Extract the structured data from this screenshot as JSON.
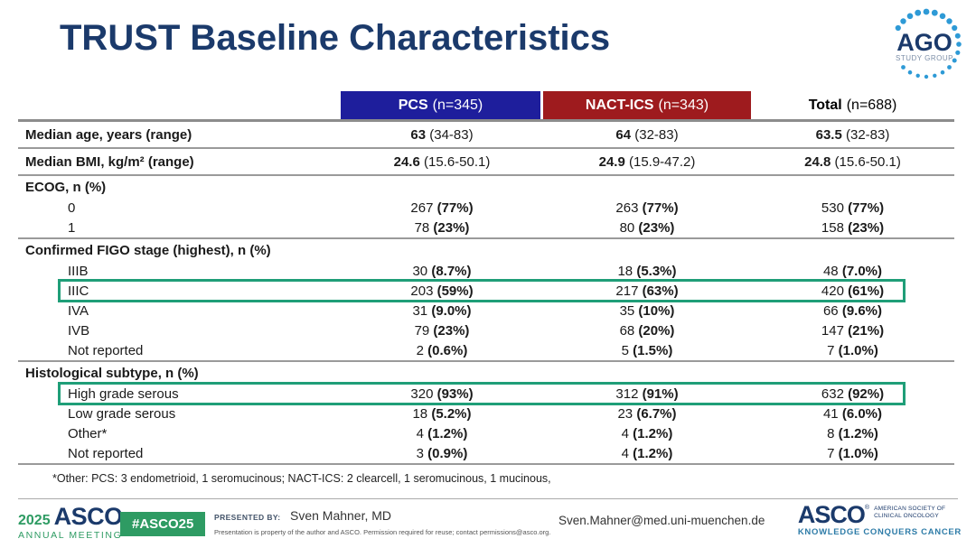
{
  "title": "TRUST Baseline Characteristics",
  "ago_logo": {
    "text": "AGO",
    "subtext": "STUDY GROUP"
  },
  "colors": {
    "title_navy": "#1B3A6B",
    "pcs_blue": "#1E1E9C",
    "nact_red": "#9E1B1E",
    "highlight_teal": "#1F9E78",
    "rule_gray": "#9A9A9A",
    "asco_green": "#2E9B63",
    "tagline_blue": "#2E7CA8",
    "dot_blue": "#2E9AD6",
    "text_dark": "#1A1A1A"
  },
  "table": {
    "header": {
      "columns": [
        {
          "name": "PCS",
          "n": "(n=345)"
        },
        {
          "name": "NACT-ICS",
          "n": "(n=343)"
        },
        {
          "name": "Total",
          "n": "(n=688)"
        }
      ]
    },
    "rows": [
      {
        "type": "data",
        "label": "Median age, years (range)",
        "bold_label": true,
        "tall": true,
        "bold_part": "main",
        "rule_below": true,
        "cells": [
          [
            "63",
            "(34-83)"
          ],
          [
            "64",
            "(32-83)"
          ],
          [
            "63.5",
            "(32-83)"
          ]
        ]
      },
      {
        "type": "data",
        "label": "Median BMI, kg/m² (range)",
        "bold_label": true,
        "tall": true,
        "bold_part": "main",
        "rule_below": true,
        "cells": [
          [
            "24.6",
            "(15.6-50.1)"
          ],
          [
            "24.9",
            "(15.9-47.2)"
          ],
          [
            "24.8",
            "(15.6-50.1)"
          ]
        ]
      },
      {
        "type": "section",
        "label": "ECOG, n (%)"
      },
      {
        "type": "data",
        "label": "0",
        "indent": true,
        "bold_part": "paren",
        "cells": [
          [
            "267",
            "(77%)"
          ],
          [
            "263",
            "(77%)"
          ],
          [
            "530",
            "(77%)"
          ]
        ]
      },
      {
        "type": "data",
        "label": "1",
        "indent": true,
        "bold_part": "paren",
        "rule_below": true,
        "cells": [
          [
            "78",
            "(23%)"
          ],
          [
            "80",
            "(23%)"
          ],
          [
            "158",
            "(23%)"
          ]
        ]
      },
      {
        "type": "section",
        "label": "Confirmed FIGO stage (highest), n (%)"
      },
      {
        "type": "data",
        "label": "IIIB",
        "indent": true,
        "bold_part": "paren",
        "cells": [
          [
            "30",
            "(8.7%)"
          ],
          [
            "18",
            "(5.3%)"
          ],
          [
            "48",
            "(7.0%)"
          ]
        ]
      },
      {
        "type": "data",
        "label": "IIIC",
        "indent": true,
        "highlight": true,
        "bold_part": "paren",
        "cells": [
          [
            "203",
            "(59%)"
          ],
          [
            "217",
            "(63%)"
          ],
          [
            "420",
            "(61%)"
          ]
        ]
      },
      {
        "type": "data",
        "label": "IVA",
        "indent": true,
        "bold_part": "paren",
        "cells": [
          [
            "31",
            "(9.0%)"
          ],
          [
            "35",
            "(10%)"
          ],
          [
            "66",
            "(9.6%)"
          ]
        ]
      },
      {
        "type": "data",
        "label": "IVB",
        "indent": true,
        "bold_part": "paren",
        "cells": [
          [
            "79",
            "(23%)"
          ],
          [
            "68",
            "(20%)"
          ],
          [
            "147",
            "(21%)"
          ]
        ]
      },
      {
        "type": "data",
        "label": "Not reported",
        "indent": true,
        "bold_part": "paren",
        "rule_below": true,
        "cells": [
          [
            "2",
            "(0.6%)"
          ],
          [
            "5",
            "(1.5%)"
          ],
          [
            "7",
            "(1.0%)"
          ]
        ]
      },
      {
        "type": "section",
        "label": "Histological subtype, n (%)"
      },
      {
        "type": "data",
        "label": "High grade serous",
        "indent": true,
        "highlight": true,
        "bold_part": "paren",
        "cells": [
          [
            "320",
            "(93%)"
          ],
          [
            "312",
            "(91%)"
          ],
          [
            "632",
            "(92%)"
          ]
        ]
      },
      {
        "type": "data",
        "label": "Low grade serous",
        "indent": true,
        "bold_part": "paren",
        "cells": [
          [
            "18",
            "(5.2%)"
          ],
          [
            "23",
            "(6.7%)"
          ],
          [
            "41",
            "(6.0%)"
          ]
        ]
      },
      {
        "type": "data",
        "label": "Other*",
        "indent": true,
        "bold_part": "paren",
        "cells": [
          [
            "4",
            "(1.2%)"
          ],
          [
            "4",
            "(1.2%)"
          ],
          [
            "8",
            "(1.2%)"
          ]
        ]
      },
      {
        "type": "data",
        "label": "Not reported",
        "indent": true,
        "bold_part": "paren",
        "rule_below": true,
        "cells": [
          [
            "3",
            "(0.9%)"
          ],
          [
            "4",
            "(1.2%)"
          ],
          [
            "7",
            "(1.0%)"
          ]
        ]
      }
    ],
    "footnote": "*Other: PCS: 3 endometrioid, 1 seromucinous; NACT-ICS: 2 clearcell, 1 seromucinous, 1 mucinous,"
  },
  "footer": {
    "meeting_year": "2025",
    "meeting_org": "ASCO",
    "meeting_name": "ANNUAL MEETING",
    "hashtag": "#ASCO25",
    "presented_by_label": "PRESENTED BY:",
    "presenter": "Sven Mahner, MD",
    "disclaimer": "Presentation is property of the author and ASCO. Permission required for reuse; contact permissions@asco.org.",
    "email": "Sven.Mahner@med.uni-muenchen.de",
    "asco_logo": {
      "name": "ASCO",
      "society_line1": "AMERICAN SOCIETY OF",
      "society_line2": "CLINICAL ONCOLOGY",
      "tagline": "KNOWLEDGE CONQUERS CANCER"
    }
  }
}
